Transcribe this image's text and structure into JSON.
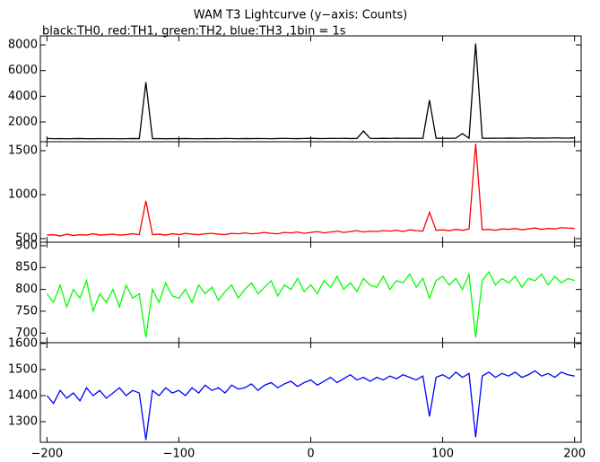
{
  "chart_data": [
    {
      "type": "line",
      "title": "WAM T3 Lightcurve (y−axis: Counts)",
      "subtitle": "black:TH0, red:TH1, green:TH2, blue:TH3 ,1bin = 1s",
      "x": [
        -200,
        -195,
        -190,
        -185,
        -180,
        -175,
        -170,
        -165,
        -160,
        -155,
        -150,
        -145,
        -140,
        -135,
        -130,
        -125,
        -120,
        -115,
        -110,
        -105,
        -100,
        -95,
        -90,
        -85,
        -80,
        -75,
        -70,
        -65,
        -60,
        -55,
        -50,
        -45,
        -40,
        -35,
        -30,
        -25,
        -20,
        -15,
        -10,
        -5,
        0,
        5,
        10,
        15,
        20,
        25,
        30,
        35,
        40,
        45,
        50,
        55,
        60,
        65,
        70,
        75,
        80,
        85,
        90,
        95,
        100,
        105,
        110,
        115,
        120,
        125,
        130,
        135,
        140,
        145,
        150,
        155,
        160,
        165,
        170,
        175,
        180,
        185,
        190,
        195,
        200
      ],
      "series": [
        {
          "name": "TH0",
          "color": "#000000",
          "values": [
            720,
            700,
            710,
            690,
            705,
            715,
            700,
            695,
            710,
            700,
            705,
            690,
            700,
            715,
            705,
            5100,
            700,
            710,
            695,
            705,
            700,
            715,
            700,
            690,
            710,
            705,
            700,
            720,
            710,
            700,
            715,
            705,
            720,
            710,
            700,
            715,
            725,
            710,
            705,
            720,
            730,
            715,
            710,
            725,
            720,
            730,
            715,
            720,
            1300,
            725,
            715,
            730,
            720,
            740,
            725,
            730,
            735,
            720,
            3700,
            740,
            730,
            725,
            745,
            1100,
            735,
            8100,
            740,
            730,
            745,
            735,
            750,
            740,
            745,
            760,
            740,
            750,
            745,
            770,
            750,
            745,
            760
          ]
        }
      ],
      "xlim": [
        -205,
        205
      ],
      "xticks": [
        {
          "value": -200,
          "label": "−200"
        },
        {
          "value": -100,
          "label": "−100"
        },
        0,
        100,
        200
      ],
      "ylim": [
        465,
        8700
      ],
      "yticks": [
        2000,
        4000,
        6000,
        8000
      ]
    },
    {
      "type": "line",
      "x": [
        -200,
        -195,
        -190,
        -185,
        -180,
        -175,
        -170,
        -165,
        -160,
        -155,
        -150,
        -145,
        -140,
        -135,
        -130,
        -125,
        -120,
        -115,
        -110,
        -105,
        -100,
        -95,
        -90,
        -85,
        -80,
        -75,
        -70,
        -65,
        -60,
        -55,
        -50,
        -45,
        -40,
        -35,
        -30,
        -25,
        -20,
        -15,
        -10,
        -5,
        0,
        5,
        10,
        15,
        20,
        25,
        30,
        35,
        40,
        45,
        50,
        55,
        60,
        65,
        70,
        75,
        80,
        85,
        90,
        95,
        100,
        105,
        110,
        115,
        120,
        125,
        130,
        135,
        140,
        145,
        150,
        155,
        160,
        165,
        170,
        175,
        180,
        185,
        190,
        195,
        200
      ],
      "series": [
        {
          "name": "TH1",
          "color": "#ff0000",
          "values": [
            540,
            545,
            530,
            550,
            535,
            545,
            540,
            555,
            540,
            545,
            550,
            540,
            545,
            555,
            545,
            930,
            545,
            550,
            540,
            555,
            545,
            560,
            550,
            545,
            555,
            560,
            550,
            545,
            560,
            555,
            565,
            555,
            560,
            570,
            560,
            555,
            570,
            565,
            575,
            560,
            570,
            580,
            565,
            575,
            585,
            570,
            580,
            590,
            575,
            585,
            580,
            590,
            585,
            595,
            580,
            600,
            590,
            585,
            800,
            595,
            600,
            590,
            605,
            595,
            610,
            1580,
            600,
            605,
            595,
            610,
            605,
            615,
            600,
            610,
            620,
            605,
            615,
            610,
            625,
            620,
            615
          ]
        }
      ],
      "xlim": [
        -205,
        205
      ],
      "xticks": [
        -200,
        -100,
        0,
        100,
        200
      ],
      "ylim": [
        459,
        1602
      ],
      "yticks": [
        500,
        1000,
        1500
      ]
    },
    {
      "type": "line",
      "x": [
        -200,
        -195,
        -190,
        -185,
        -180,
        -175,
        -170,
        -165,
        -160,
        -155,
        -150,
        -145,
        -140,
        -135,
        -130,
        -125,
        -120,
        -115,
        -110,
        -105,
        -100,
        -95,
        -90,
        -85,
        -80,
        -75,
        -70,
        -65,
        -60,
        -55,
        -50,
        -45,
        -40,
        -35,
        -30,
        -25,
        -20,
        -15,
        -10,
        -5,
        0,
        5,
        10,
        15,
        20,
        25,
        30,
        35,
        40,
        45,
        50,
        55,
        60,
        65,
        70,
        75,
        80,
        85,
        90,
        95,
        100,
        105,
        110,
        115,
        120,
        125,
        130,
        135,
        140,
        145,
        150,
        155,
        160,
        165,
        170,
        175,
        180,
        185,
        190,
        195,
        200
      ],
      "series": [
        {
          "name": "TH2",
          "color": "#00ff00",
          "values": [
            790,
            770,
            810,
            760,
            800,
            780,
            820,
            750,
            790,
            770,
            800,
            760,
            810,
            780,
            790,
            690,
            800,
            770,
            815,
            785,
            780,
            800,
            770,
            810,
            790,
            805,
            775,
            795,
            810,
            780,
            800,
            815,
            790,
            805,
            820,
            785,
            810,
            800,
            825,
            795,
            810,
            790,
            820,
            805,
            830,
            800,
            815,
            795,
            825,
            810,
            805,
            830,
            800,
            820,
            815,
            835,
            805,
            825,
            780,
            820,
            830,
            810,
            825,
            800,
            835,
            690,
            820,
            840,
            810,
            825,
            815,
            830,
            805,
            825,
            820,
            835,
            810,
            830,
            815,
            825,
            820
          ]
        }
      ],
      "xlim": [
        -205,
        205
      ],
      "xticks": [
        -200,
        -100,
        0,
        100,
        200
      ],
      "ylim": [
        678,
        908
      ],
      "yticks": [
        700,
        750,
        800,
        850,
        900
      ]
    },
    {
      "type": "line",
      "x": [
        -200,
        -195,
        -190,
        -185,
        -180,
        -175,
        -170,
        -165,
        -160,
        -155,
        -150,
        -145,
        -140,
        -135,
        -130,
        -125,
        -120,
        -115,
        -110,
        -105,
        -100,
        -95,
        -90,
        -85,
        -80,
        -75,
        -70,
        -65,
        -60,
        -55,
        -50,
        -45,
        -40,
        -35,
        -30,
        -25,
        -20,
        -15,
        -10,
        -5,
        0,
        5,
        10,
        15,
        20,
        25,
        30,
        35,
        40,
        45,
        50,
        55,
        60,
        65,
        70,
        75,
        80,
        85,
        90,
        95,
        100,
        105,
        110,
        115,
        120,
        125,
        130,
        135,
        140,
        145,
        150,
        155,
        160,
        165,
        170,
        175,
        180,
        185,
        190,
        195,
        200
      ],
      "series": [
        {
          "name": "TH3",
          "color": "#0000ff",
          "values": [
            1400,
            1370,
            1420,
            1390,
            1410,
            1380,
            1430,
            1400,
            1420,
            1390,
            1410,
            1430,
            1400,
            1420,
            1410,
            1230,
            1420,
            1400,
            1430,
            1410,
            1420,
            1400,
            1430,
            1410,
            1440,
            1420,
            1430,
            1410,
            1440,
            1425,
            1430,
            1445,
            1420,
            1440,
            1450,
            1430,
            1445,
            1455,
            1435,
            1450,
            1460,
            1440,
            1455,
            1470,
            1450,
            1465,
            1480,
            1460,
            1470,
            1455,
            1470,
            1460,
            1475,
            1465,
            1480,
            1470,
            1460,
            1475,
            1320,
            1470,
            1480,
            1465,
            1490,
            1470,
            1485,
            1240,
            1475,
            1490,
            1470,
            1485,
            1475,
            1490,
            1470,
            1480,
            1495,
            1475,
            1485,
            1470,
            1490,
            1480,
            1475
          ]
        }
      ],
      "xlim": [
        -205,
        205
      ],
      "xticks": [
        {
          "value": -200,
          "label": "−200"
        },
        {
          "value": -100,
          "label": "−100"
        },
        0,
        100,
        200
      ],
      "ylim": [
        1221,
        1603
      ],
      "yticks": [
        1300,
        1400,
        1500,
        1600
      ]
    }
  ]
}
